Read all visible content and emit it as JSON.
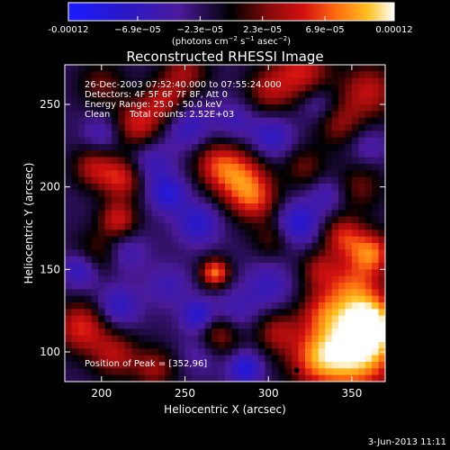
{
  "chart_data": {
    "type": "heatmap",
    "title": "Reconstructed RHESSI Image",
    "xlabel": "Heliocentric X (arcsec)",
    "ylabel": "Heliocentric Y (arcsec)",
    "xlim": [
      178,
      370
    ],
    "ylim": [
      82,
      274
    ],
    "x_ticks": [
      200,
      250,
      300,
      350
    ],
    "y_ticks": [
      100,
      150,
      200,
      250
    ],
    "colorbar": {
      "range": [
        -0.00012,
        0.00012
      ],
      "tick_values": [
        -0.00012,
        -6.9e-05,
        -2.3e-05,
        2.3e-05,
        6.9e-05,
        0.00012
      ],
      "tick_labels": [
        "-0.00012",
        "−6.9e−05",
        "−2.3e−05",
        "2.3e−05",
        "6.9e−05",
        "0.00012"
      ],
      "label_main": "(photons cm",
      "label_exp1": "−2",
      "label_mid": " s",
      "label_exp2": "−1",
      "label_tail": " asec",
      "label_exp3": "−2",
      "label_end": ")",
      "stops": [
        [
          0.0,
          "#1a1aff"
        ],
        [
          0.17,
          "#2a18c8"
        ],
        [
          0.34,
          "#4a1a9a"
        ],
        [
          0.5,
          "#000000"
        ],
        [
          0.62,
          "#8a0a0a"
        ],
        [
          0.72,
          "#d21010"
        ],
        [
          0.82,
          "#ff6a10"
        ],
        [
          0.92,
          "#ffc020"
        ],
        [
          1.0,
          "#ffffff"
        ]
      ]
    },
    "annotations": {
      "time_range": "26-Dec-2003 07:52:40.000 to 07:55:24.000",
      "detectors": "Detectors: 4F 5F 6F 7F 8F, Att 0",
      "energy": "Energy Range: 25.0 - 50.0 keV",
      "clean_label": "Clean",
      "total_counts": "Total counts: 2.52E+03",
      "peak": "Position of Peak = [352,96]"
    },
    "peak_position": [
      352,
      96
    ],
    "blobs": [
      {
        "x": 352,
        "y": 100,
        "amp": 1.1,
        "s": 18
      },
      {
        "x": 362,
        "y": 118,
        "amp": 0.8,
        "s": 12
      },
      {
        "x": 328,
        "y": 96,
        "amp": 0.55,
        "s": 12
      },
      {
        "x": 350,
        "y": 140,
        "amp": 0.6,
        "s": 12
      },
      {
        "x": 332,
        "y": 124,
        "amp": 0.45,
        "s": 10
      },
      {
        "x": 282,
        "y": 206,
        "amp": 0.7,
        "s": 12
      },
      {
        "x": 292,
        "y": 192,
        "amp": 0.55,
        "s": 10
      },
      {
        "x": 268,
        "y": 215,
        "amp": 0.45,
        "s": 10
      },
      {
        "x": 345,
        "y": 170,
        "amp": 0.6,
        "s": 9
      },
      {
        "x": 362,
        "y": 160,
        "amp": 0.75,
        "s": 9
      },
      {
        "x": 268,
        "y": 148,
        "amp": 0.85,
        "s": 6
      },
      {
        "x": 222,
        "y": 238,
        "amp": 0.6,
        "s": 10
      },
      {
        "x": 238,
        "y": 252,
        "amp": 0.5,
        "s": 9
      },
      {
        "x": 212,
        "y": 205,
        "amp": 0.6,
        "s": 9
      },
      {
        "x": 195,
        "y": 212,
        "amp": 0.5,
        "s": 9
      },
      {
        "x": 210,
        "y": 180,
        "amp": 0.6,
        "s": 8
      },
      {
        "x": 196,
        "y": 158,
        "amp": 0.4,
        "s": 10
      },
      {
        "x": 188,
        "y": 115,
        "amp": 0.65,
        "s": 11
      },
      {
        "x": 208,
        "y": 98,
        "amp": 0.5,
        "s": 10
      },
      {
        "x": 232,
        "y": 90,
        "amp": 0.45,
        "s": 9
      },
      {
        "x": 270,
        "y": 110,
        "amp": 0.5,
        "s": 9
      },
      {
        "x": 305,
        "y": 112,
        "amp": 0.45,
        "s": 9
      },
      {
        "x": 320,
        "y": 270,
        "amp": 0.6,
        "s": 12
      },
      {
        "x": 300,
        "y": 258,
        "amp": 0.45,
        "s": 10
      },
      {
        "x": 360,
        "y": 258,
        "amp": 0.55,
        "s": 12
      },
      {
        "x": 342,
        "y": 238,
        "amp": 0.4,
        "s": 10
      },
      {
        "x": 322,
        "y": 212,
        "amp": 0.35,
        "s": 9
      },
      {
        "x": 250,
        "y": 270,
        "amp": 0.45,
        "s": 10
      },
      {
        "x": 200,
        "y": 262,
        "amp": 0.35,
        "s": 10
      },
      {
        "x": 330,
        "y": 150,
        "amp": 0.4,
        "s": 8
      },
      {
        "x": 302,
        "y": 168,
        "amp": 0.3,
        "s": 8
      },
      {
        "x": 355,
        "y": 200,
        "amp": 0.35,
        "s": 10
      },
      {
        "x": 240,
        "y": 196,
        "amp": -0.55,
        "s": 8
      },
      {
        "x": 258,
        "y": 178,
        "amp": -0.5,
        "s": 9
      },
      {
        "x": 188,
        "y": 150,
        "amp": -0.55,
        "s": 8
      },
      {
        "x": 258,
        "y": 122,
        "amp": -0.55,
        "s": 7
      },
      {
        "x": 318,
        "y": 178,
        "amp": -0.55,
        "s": 9
      },
      {
        "x": 302,
        "y": 230,
        "amp": -0.45,
        "s": 9
      },
      {
        "x": 210,
        "y": 128,
        "amp": -0.45,
        "s": 9
      },
      {
        "x": 252,
        "y": 236,
        "amp": -0.4,
        "s": 10
      },
      {
        "x": 286,
        "y": 90,
        "amp": -0.6,
        "s": 7
      },
      {
        "x": 300,
        "y": 140,
        "amp": -0.35,
        "s": 10
      },
      {
        "x": 335,
        "y": 195,
        "amp": -0.3,
        "s": 8
      },
      {
        "x": 215,
        "y": 160,
        "amp": -0.3,
        "s": 9
      },
      {
        "x": 230,
        "y": 215,
        "amp": -0.35,
        "s": 9
      },
      {
        "x": 280,
        "y": 240,
        "amp": -0.3,
        "s": 9
      },
      {
        "x": 200,
        "y": 232,
        "amp": -0.3,
        "s": 8
      },
      {
        "x": 240,
        "y": 140,
        "amp": -0.3,
        "s": 9
      },
      {
        "x": 280,
        "y": 125,
        "amp": -0.3,
        "s": 9
      },
      {
        "x": 330,
        "y": 250,
        "amp": -0.3,
        "s": 8
      },
      {
        "x": 360,
        "y": 225,
        "amp": -0.25,
        "s": 8
      },
      {
        "x": 260,
        "y": 100,
        "amp": -0.25,
        "s": 9
      }
    ]
  },
  "footer": {
    "date": "3-Jun-2013 11:11"
  }
}
